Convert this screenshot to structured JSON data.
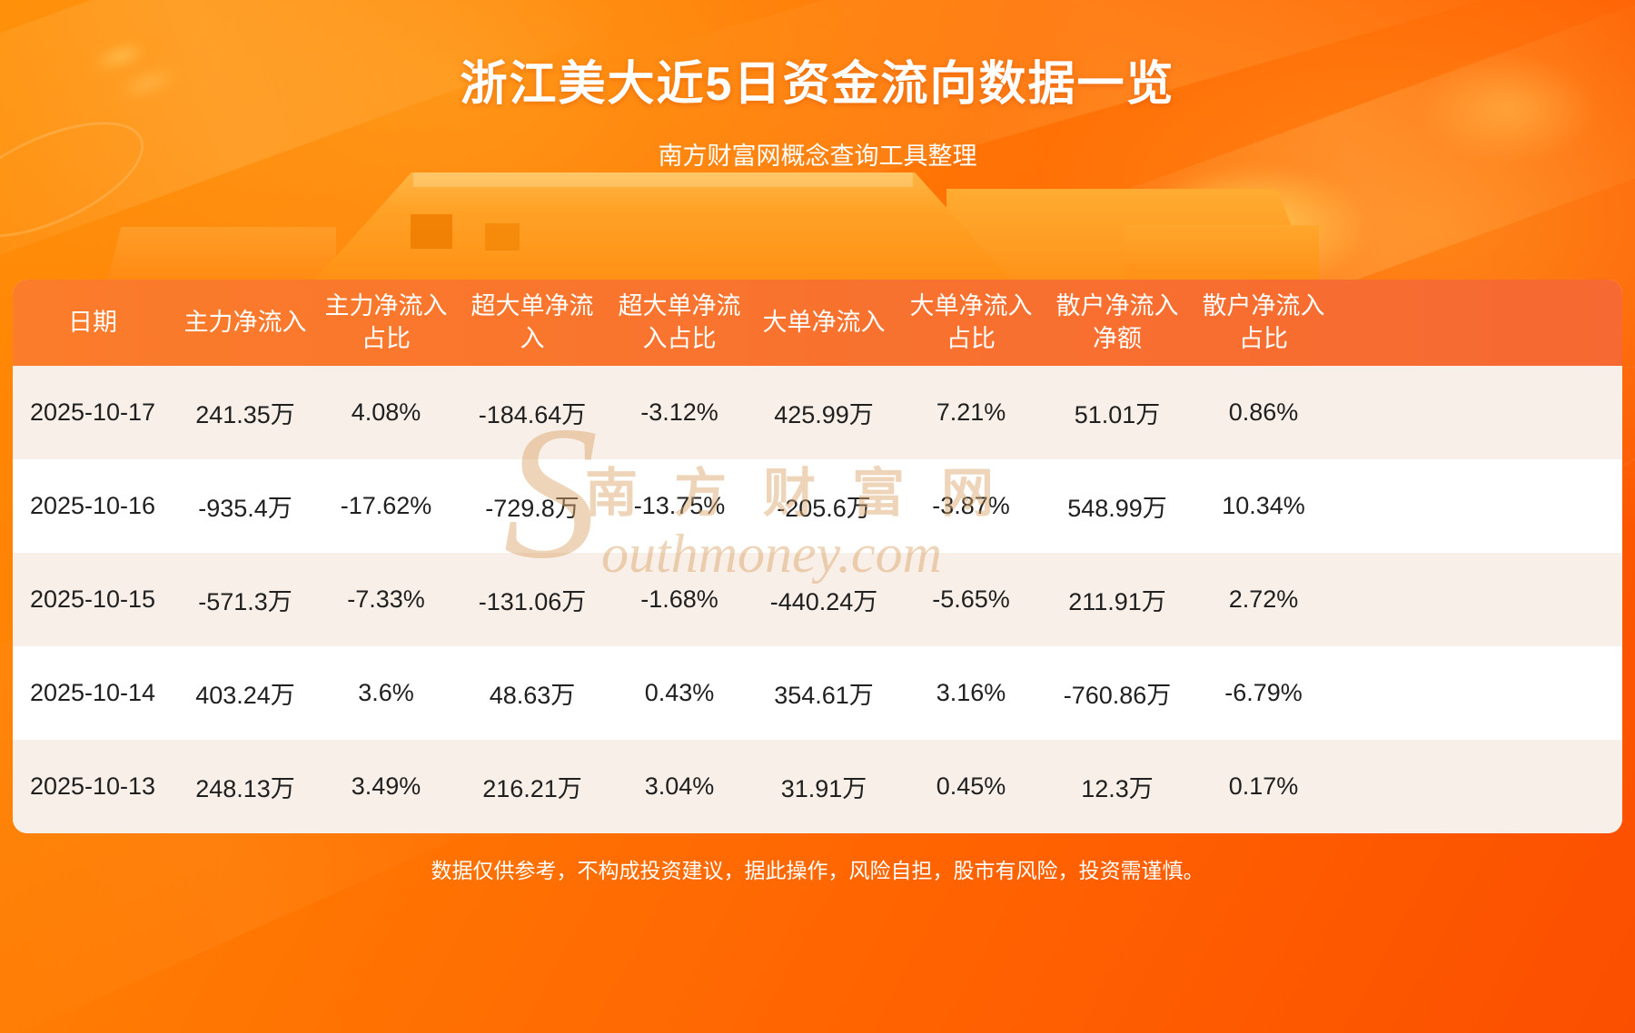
{
  "header": {
    "title": "浙江美大近5日资金流向数据一览",
    "subtitle": "南方财富网概念查询工具整理"
  },
  "table": {
    "display_columns": [
      "日期",
      "主力净流入",
      "主力净流入\n占比",
      "超大单净流\n入",
      "超大单净流\n入占比",
      "大单净流入",
      "大单净流入\n占比",
      "散户净流入\n净额",
      "散户净流入\n占比"
    ]
  },
  "chart_data": {
    "type": "table",
    "title": "浙江美大近5日资金流向数据一览",
    "columns": [
      "日期",
      "主力净流入",
      "主力净流入占比",
      "超大单净流入",
      "超大单净流入占比",
      "大单净流入",
      "大单净流入占比",
      "散户净流入净额",
      "散户净流入占比"
    ],
    "rows": [
      [
        "2025-10-17",
        "241.35万",
        "4.08%",
        "-184.64万",
        "-3.12%",
        "425.99万",
        "7.21%",
        "51.01万",
        "0.86%"
      ],
      [
        "2025-10-16",
        "-935.4万",
        "-17.62%",
        "-729.8万",
        "-13.75%",
        "-205.6万",
        "-3.87%",
        "548.99万",
        "10.34%"
      ],
      [
        "2025-10-15",
        "-571.3万",
        "-7.33%",
        "-131.06万",
        "-1.68%",
        "-440.24万",
        "-5.65%",
        "211.91万",
        "2.72%"
      ],
      [
        "2025-10-14",
        "403.24万",
        "3.6%",
        "48.63万",
        "0.43%",
        "354.61万",
        "3.16%",
        "-760.86万",
        "-6.79%"
      ],
      [
        "2025-10-13",
        "248.13万",
        "3.49%",
        "216.21万",
        "3.04%",
        "31.91万",
        "0.45%",
        "12.3万",
        "0.17%"
      ]
    ]
  },
  "watermark": {
    "initial": "S",
    "cn": "南方财富网",
    "en": "outhmoney.com"
  },
  "footer": {
    "disclaimer": "数据仅供参考，不构成投资建议，据此操作，风险自担，股市有风险，投资需谨慎。"
  },
  "colors": {
    "background_orange": "#ff7302",
    "table_header": "#f8722e",
    "row_cream": "#f8efe8",
    "row_white": "#ffffff",
    "text_dark": "#202020",
    "text_white": "#ffffff",
    "watermark": "#dca86f"
  }
}
